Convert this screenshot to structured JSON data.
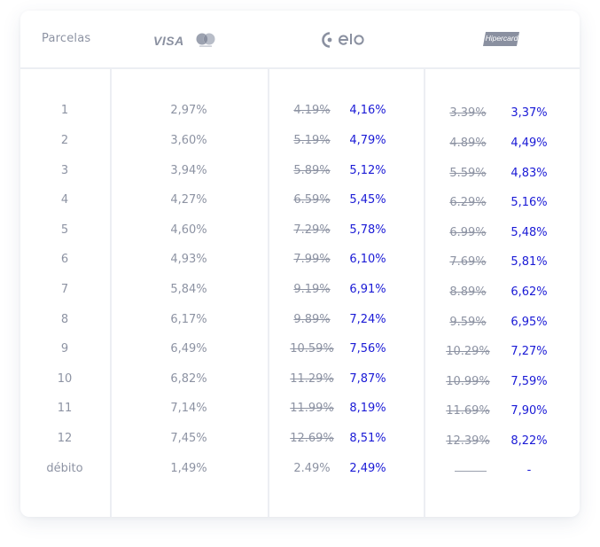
{
  "header": {
    "parcelas_label": "Parcelas",
    "visa_logo": "VISA",
    "mastercard_icon": "mastercard-icon",
    "elo_icon": "elo-icon",
    "hipercard_logo": "Hipercard"
  },
  "colors": {
    "new_rate": "#1a1ad6",
    "muted": "#8d93a3",
    "divider": "#eceef3"
  },
  "rows": [
    {
      "parcela": "1",
      "visa": "2,97%",
      "elo_old": "4.19%",
      "elo_new": "4,16%",
      "hip_old": "3.39%",
      "hip_new": "3,37%"
    },
    {
      "parcela": "2",
      "visa": "3,60%",
      "elo_old": "5.19%",
      "elo_new": "4,79%",
      "hip_old": "4.89%",
      "hip_new": "4,49%"
    },
    {
      "parcela": "3",
      "visa": "3,94%",
      "elo_old": "5.89%",
      "elo_new": "5,12%",
      "hip_old": "5.59%",
      "hip_new": "4,83%"
    },
    {
      "parcela": "4",
      "visa": "4,27%",
      "elo_old": "6.59%",
      "elo_new": "5,45%",
      "hip_old": "6.29%",
      "hip_new": "5,16%"
    },
    {
      "parcela": "5",
      "visa": "4,60%",
      "elo_old": "7.29%",
      "elo_new": "5,78%",
      "hip_old": "6.99%",
      "hip_new": "5,48%"
    },
    {
      "parcela": "6",
      "visa": "4,93%",
      "elo_old": "7.99%",
      "elo_new": "6,10%",
      "hip_old": "7.69%",
      "hip_new": "5,81%"
    },
    {
      "parcela": "7",
      "visa": "5,84%",
      "elo_old": "9.19%",
      "elo_new": "6,91%",
      "hip_old": "8.89%",
      "hip_new": "6,62%"
    },
    {
      "parcela": "8",
      "visa": "6,17%",
      "elo_old": "9.89%",
      "elo_new": "7,24%",
      "hip_old": "9.59%",
      "hip_new": "6,95%"
    },
    {
      "parcela": "9",
      "visa": "6,49%",
      "elo_old": "10.59%",
      "elo_new": "7,56%",
      "hip_old": "10.29%",
      "hip_new": "7,27%"
    },
    {
      "parcela": "10",
      "visa": "6,82%",
      "elo_old": "11.29%",
      "elo_new": "7,87%",
      "hip_old": "10.99%",
      "hip_new": "7,59%"
    },
    {
      "parcela": "11",
      "visa": "7,14%",
      "elo_old": "11.99%",
      "elo_new": "8,19%",
      "hip_old": "11.69%",
      "hip_new": "7,90%"
    },
    {
      "parcela": "12",
      "visa": "7,45%",
      "elo_old": "12.69%",
      "elo_new": "8,51%",
      "hip_old": "12.39%",
      "hip_new": "8,22%"
    }
  ],
  "debito": {
    "parcela": "débito",
    "visa": "1,49%",
    "elo_old": "2.49%",
    "elo_new": "2,49%",
    "hip_new": "-"
  }
}
